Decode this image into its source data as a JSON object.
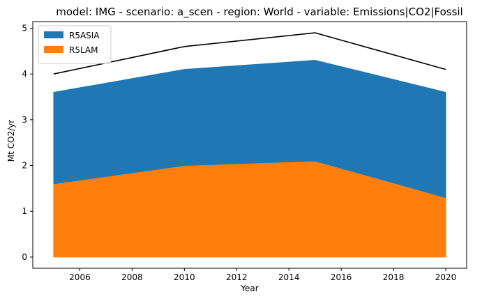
{
  "chart_data": {
    "type": "area",
    "title": "model: IMG - scenario: a_scen - region: World - variable: Emissions|CO2|Fossil",
    "xlabel": "Year",
    "ylabel": "Mt CO2/yr",
    "x": [
      2005,
      2010,
      2015,
      2020
    ],
    "series": [
      {
        "name": "R5LAM",
        "values": [
          1.6,
          2.0,
          2.1,
          1.3
        ],
        "color": "#ff7f0e"
      },
      {
        "name": "R5ASIA",
        "values": [
          2.0,
          2.1,
          2.2,
          2.3
        ],
        "color": "#1f77b4"
      }
    ],
    "total_line": {
      "values": [
        4.0,
        4.6,
        4.9,
        4.1
      ],
      "color": "#000000"
    },
    "stacked": true,
    "xlim": [
      2004.2,
      2020.8
    ],
    "ylim": [
      -0.245,
      5.145
    ],
    "xticks": [
      "2006",
      "2008",
      "2010",
      "2012",
      "2014",
      "2016",
      "2018",
      "2020"
    ],
    "yticks": [
      "0",
      "1",
      "2",
      "3",
      "4",
      "5"
    ],
    "legend": {
      "placement": "top-left",
      "entries": [
        "R5ASIA",
        "R5LAM"
      ]
    },
    "grid": false
  }
}
